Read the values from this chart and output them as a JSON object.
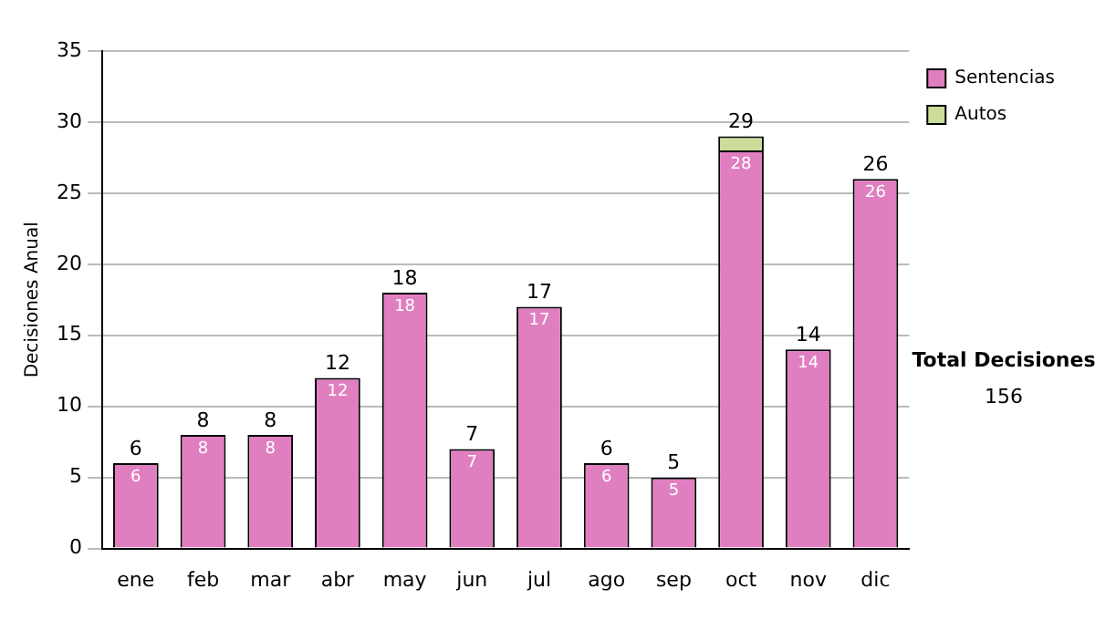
{
  "chart_data": {
    "type": "bar",
    "stacked": true,
    "ylabel": "Decisiones Anual",
    "categories": [
      "ene",
      "feb",
      "mar",
      "abr",
      "may",
      "jun",
      "jul",
      "ago",
      "sep",
      "oct",
      "nov",
      "dic"
    ],
    "series": [
      {
        "name": "Sentencias",
        "color": "#e07fc0",
        "values": [
          6,
          8,
          8,
          12,
          18,
          7,
          17,
          6,
          5,
          28,
          14,
          26
        ],
        "value_labels": [
          "6",
          "8",
          "8",
          "12",
          "18",
          "7",
          "17",
          "6",
          "5",
          "28",
          "14",
          "26"
        ]
      },
      {
        "name": "Autos",
        "color": "#ccdd99",
        "values": [
          0,
          0,
          0,
          0,
          0,
          0,
          0,
          0,
          0,
          1,
          0,
          0
        ]
      }
    ],
    "totals": [
      "6",
      "8",
      "8",
      "12",
      "18",
      "7",
      "17",
      "6",
      "5",
      "29",
      "14",
      "26"
    ],
    "ylim": [
      0,
      35
    ],
    "yticks": [
      0,
      5,
      10,
      15,
      20,
      25,
      30,
      35
    ],
    "grid": "y",
    "legend": "right",
    "annotations": [
      "Total Decisiones",
      "156"
    ]
  }
}
